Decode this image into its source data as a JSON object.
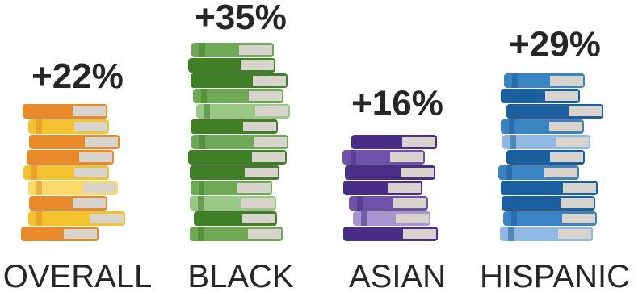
{
  "chart_data": {
    "type": "bar",
    "title": "",
    "categories": [
      "OVERALL",
      "BLACK",
      "ASIAN",
      "HISPANIC"
    ],
    "series": [
      {
        "values": [
          22,
          35,
          16,
          29
        ]
      }
    ],
    "labels": [
      "+22%",
      "+35%",
      "+16%",
      "+29%"
    ],
    "value_unit": "%",
    "mark": "stacked-books",
    "colors": {
      "OVERALL": {
        "main": "#e8892a",
        "light": "#f3c22f",
        "pale": "#fbd96a",
        "pages": "#d8d3cc"
      },
      "BLACK": {
        "main": "#3f7f26",
        "light": "#6fa955",
        "pale": "#98c883",
        "pages": "#d8d3cc"
      },
      "ASIAN": {
        "main": "#4a2d86",
        "light": "#7052a8",
        "pale": "#a795cf",
        "pages": "#d8d3cc"
      },
      "HISPANIC": {
        "main": "#1b5f9f",
        "light": "#3a84c4",
        "pale": "#8fb8e2",
        "pages": "#d8d3cc"
      }
    },
    "text_color": "#262626"
  }
}
